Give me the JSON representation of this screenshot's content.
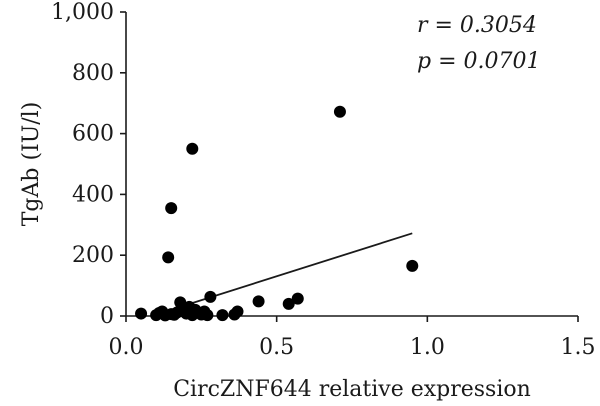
{
  "chart_data": {
    "type": "scatter",
    "xlabel": "CircZNF644 relative expression",
    "ylabel": "TgAb (IU/l)",
    "xlim": [
      0,
      1.5
    ],
    "ylim": [
      0,
      1000
    ],
    "x_ticks": [
      {
        "value": 0,
        "label": "0.0"
      },
      {
        "value": 0.5,
        "label": "0.5"
      },
      {
        "value": 1.0,
        "label": "1.0"
      },
      {
        "value": 1.5,
        "label": "1.5"
      }
    ],
    "y_ticks": [
      {
        "value": 0,
        "label": "0"
      },
      {
        "value": 200,
        "label": "200"
      },
      {
        "value": 400,
        "label": "400"
      },
      {
        "value": 600,
        "label": "600"
      },
      {
        "value": 800,
        "label": "800"
      },
      {
        "value": 1000,
        "label": "1,000"
      }
    ],
    "grid": false,
    "points": [
      {
        "x": 0.05,
        "y": 8
      },
      {
        "x": 0.1,
        "y": 3
      },
      {
        "x": 0.11,
        "y": 10
      },
      {
        "x": 0.12,
        "y": 15
      },
      {
        "x": 0.13,
        "y": 2
      },
      {
        "x": 0.14,
        "y": 193
      },
      {
        "x": 0.15,
        "y": 355
      },
      {
        "x": 0.15,
        "y": 6
      },
      {
        "x": 0.16,
        "y": 4
      },
      {
        "x": 0.17,
        "y": 12
      },
      {
        "x": 0.18,
        "y": 45
      },
      {
        "x": 0.19,
        "y": 28
      },
      {
        "x": 0.2,
        "y": 8
      },
      {
        "x": 0.21,
        "y": 30
      },
      {
        "x": 0.22,
        "y": 550
      },
      {
        "x": 0.22,
        "y": 3
      },
      {
        "x": 0.23,
        "y": 20
      },
      {
        "x": 0.25,
        "y": 5
      },
      {
        "x": 0.26,
        "y": 15
      },
      {
        "x": 0.27,
        "y": 3
      },
      {
        "x": 0.28,
        "y": 63
      },
      {
        "x": 0.32,
        "y": 3
      },
      {
        "x": 0.36,
        "y": 5
      },
      {
        "x": 0.37,
        "y": 15
      },
      {
        "x": 0.44,
        "y": 48
      },
      {
        "x": 0.54,
        "y": 40
      },
      {
        "x": 0.57,
        "y": 57
      },
      {
        "x": 0.71,
        "y": 672
      },
      {
        "x": 0.95,
        "y": 165
      }
    ],
    "trendline": {
      "x1": 0.1,
      "y1": 5,
      "x2": 0.95,
      "y2": 272
    },
    "annotations": [
      "r = 0.3054",
      "p = 0.0701"
    ]
  }
}
